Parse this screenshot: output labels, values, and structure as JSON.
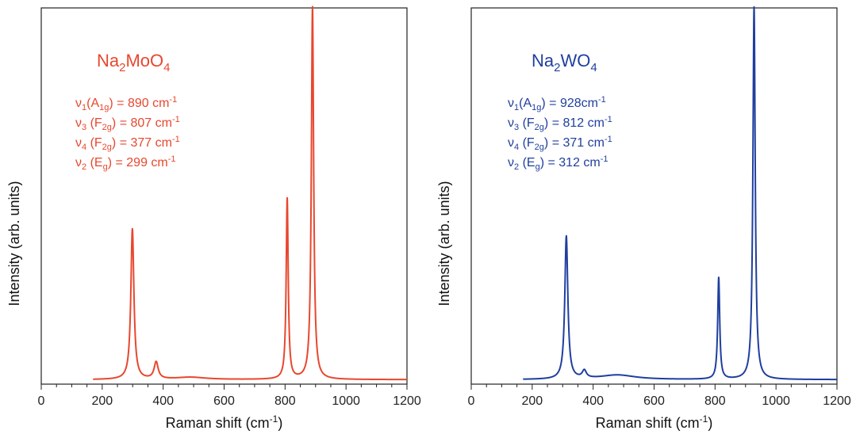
{
  "chart_data": [
    {
      "type": "line",
      "xlabel": "Raman shift (cm",
      "xlabel_sup": "-1",
      "xlabel_close": ")",
      "ylabel": "Intensity (arb. units)",
      "xlim": [
        0,
        1200
      ],
      "ylim": [
        0,
        1.0
      ],
      "xticks": [
        "0",
        "200",
        "400",
        "600",
        "800",
        "1000",
        "1200"
      ],
      "color": "#e8472e",
      "formula": {
        "p1": "Na",
        "s1": "2",
        "p2": "MoO",
        "s2": "4"
      },
      "modes": [
        {
          "nu": "ν",
          "nu_sub": "1",
          "sym": "(A",
          "sym_sub": "1g",
          "value": ") = 890 cm",
          "sup": "-1"
        },
        {
          "nu": "ν",
          "nu_sub": "3",
          "sym": " (F",
          "sym_sub": "2g",
          "value": ") = 807 cm",
          "sup": "-1"
        },
        {
          "nu": "ν",
          "nu_sub": "4",
          "sym": " (F",
          "sym_sub": "2g",
          "value": ") = 377 cm",
          "sup": "-1"
        },
        {
          "nu": "ν",
          "nu_sub": "2",
          "sym": " (E",
          "sym_sub": "g",
          "value": ") = 299 cm",
          "sup": "-1"
        }
      ],
      "x_range": [
        170,
        1200
      ],
      "baseline": 0.012,
      "peaks": [
        {
          "x": 299,
          "height": 0.4,
          "width": 6
        },
        {
          "x": 377,
          "height": 0.045,
          "width": 8
        },
        {
          "x": 490,
          "height": 0.006,
          "width": 60
        },
        {
          "x": 807,
          "height": 0.48,
          "width": 4
        },
        {
          "x": 890,
          "height": 0.99,
          "width": 4.5
        }
      ]
    },
    {
      "type": "line",
      "xlabel": "Raman shift (cm",
      "xlabel_sup": "-1",
      "xlabel_close": ")",
      "ylabel": "Intensity (arb. units)",
      "xlim": [
        0,
        1200
      ],
      "ylim": [
        0,
        1.0
      ],
      "xticks": [
        "0",
        "200",
        "400",
        "600",
        "800",
        "1000",
        "1200"
      ],
      "color": "#1f3f9e",
      "formula": {
        "p1": "Na",
        "s1": "2",
        "p2": "WO",
        "s2": "4"
      },
      "modes": [
        {
          "nu": "ν",
          "nu_sub": "1",
          "sym": "(A",
          "sym_sub": "1g",
          "value": ") = 928cm",
          "sup": "-1"
        },
        {
          "nu": "ν",
          "nu_sub": "3",
          "sym": " (F",
          "sym_sub": "2g",
          "value": ") = 812 cm",
          "sup": "-1"
        },
        {
          "nu": "ν",
          "nu_sub": "4",
          "sym": " (F",
          "sym_sub": "2g",
          "value": ") = 371 cm",
          "sup": "-1"
        },
        {
          "nu": "ν",
          "nu_sub": "2",
          "sym": " (E",
          "sym_sub": "g",
          "value": ") = 312 cm",
          "sup": "-1"
        }
      ],
      "x_range": [
        170,
        1200
      ],
      "baseline": 0.012,
      "peaks": [
        {
          "x": 312,
          "height": 0.38,
          "width": 6
        },
        {
          "x": 371,
          "height": 0.02,
          "width": 8
        },
        {
          "x": 480,
          "height": 0.012,
          "width": 70
        },
        {
          "x": 812,
          "height": 0.27,
          "width": 4
        },
        {
          "x": 928,
          "height": 0.99,
          "width": 4.5
        }
      ]
    }
  ]
}
